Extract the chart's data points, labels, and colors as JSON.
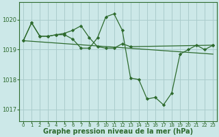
{
  "background_color": "#cce8e8",
  "grid_color": "#aacccc",
  "line_color": "#2d6a2d",
  "xlabel": "Graphe pression niveau de la mer (hPa)",
  "xlabel_fontsize": 7,
  "xlim": [
    -0.5,
    23.5
  ],
  "ylim": [
    1016.6,
    1020.6
  ],
  "yticks": [
    1017,
    1018,
    1019,
    1020
  ],
  "xticks": [
    0,
    1,
    2,
    3,
    4,
    5,
    6,
    7,
    8,
    9,
    10,
    11,
    12,
    13,
    14,
    15,
    16,
    17,
    18,
    19,
    20,
    21,
    22,
    23
  ],
  "series1_x": [
    0,
    1,
    2,
    3,
    4,
    5,
    6,
    7,
    8,
    9,
    10,
    11,
    12,
    13,
    14,
    15,
    16,
    17,
    18,
    19,
    20,
    21,
    22,
    23
  ],
  "series1_y": [
    1019.3,
    1019.9,
    1019.45,
    1019.45,
    1019.5,
    1019.5,
    1019.35,
    1019.05,
    1019.05,
    1019.4,
    1020.1,
    1020.2,
    1019.65,
    1018.05,
    1018.0,
    1017.35,
    1017.4,
    1017.15,
    1017.55,
    1018.85,
    1019.0,
    1019.15,
    1019.0,
    1019.15
  ],
  "series2_x": [
    0,
    1,
    2,
    3,
    4,
    5,
    6,
    7,
    8,
    9,
    10,
    11,
    12,
    13,
    23
  ],
  "series2_y": [
    1019.3,
    1019.9,
    1019.45,
    1019.45,
    1019.5,
    1019.55,
    1019.65,
    1019.8,
    1019.4,
    1019.1,
    1019.05,
    1019.05,
    1019.2,
    1019.1,
    1019.15
  ],
  "series3_x": [
    0,
    23
  ],
  "series3_y": [
    1019.3,
    1018.85
  ]
}
